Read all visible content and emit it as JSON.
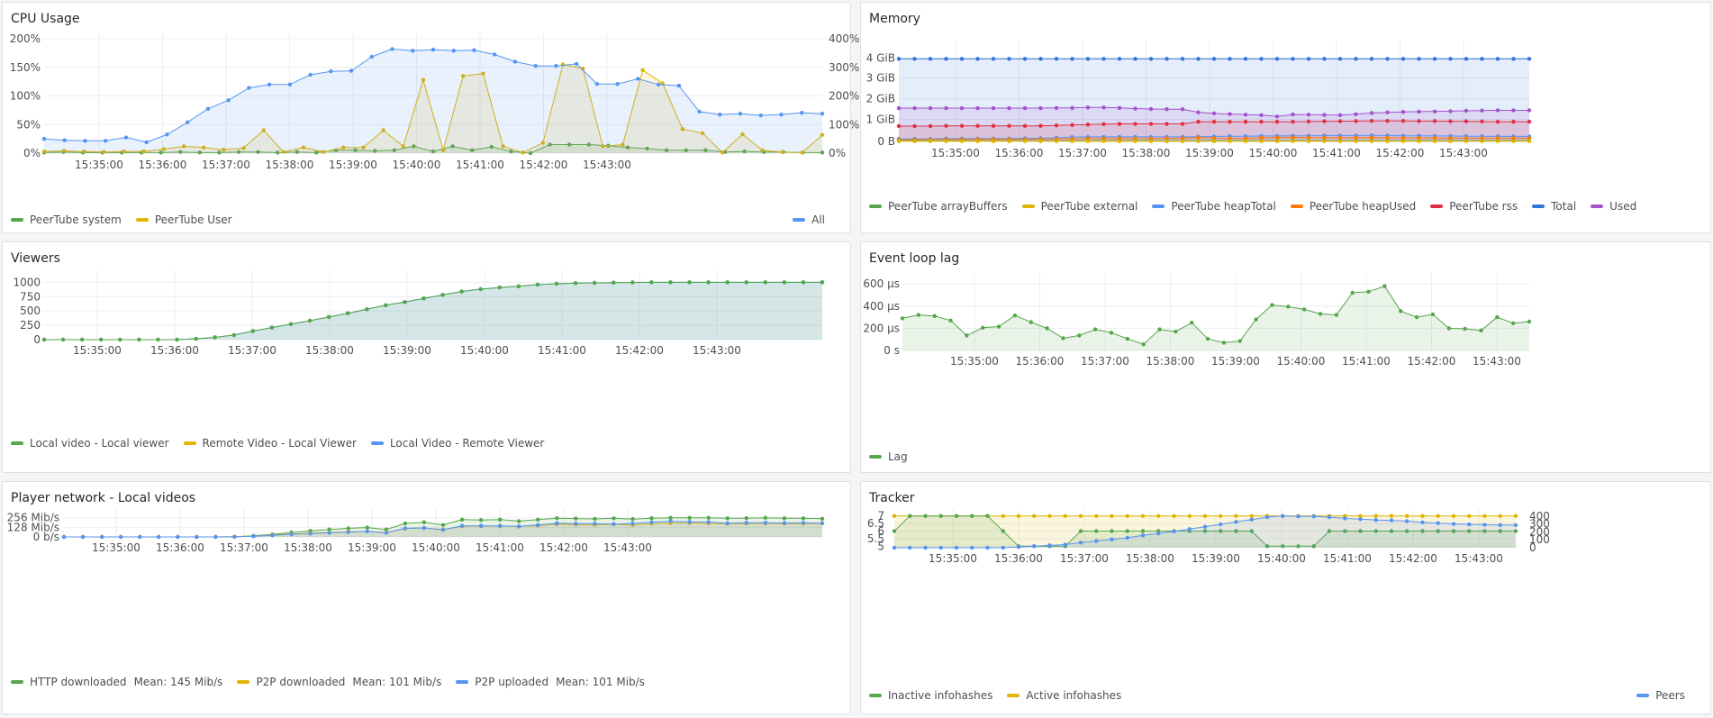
{
  "panels": {
    "cpu": {
      "title": "CPU Usage",
      "legend_left": [
        {
          "name": "PeerTube system",
          "color": "#56a64b"
        },
        {
          "name": "PeerTube User",
          "color": "#e0b400"
        }
      ],
      "legend_right": [
        {
          "name": "All",
          "color": "#5794f2"
        }
      ],
      "yticks_left": [
        "200%",
        "150%",
        "100%",
        "50%",
        "0%"
      ],
      "yticks_right": [
        "400%",
        "300%",
        "200%",
        "100%",
        "0%"
      ]
    },
    "memory": {
      "title": "Memory",
      "legend": [
        {
          "name": "PeerTube arrayBuffers",
          "color": "#56a64b"
        },
        {
          "name": "PeerTube external",
          "color": "#e0b400"
        },
        {
          "name": "PeerTube heapTotal",
          "color": "#5794f2"
        },
        {
          "name": "PeerTube heapUsed",
          "color": "#ff780a"
        },
        {
          "name": "PeerTube rss",
          "color": "#e02f44"
        },
        {
          "name": "Total",
          "color": "#3274d9"
        },
        {
          "name": "Used",
          "color": "#a352cc"
        }
      ],
      "yticks": [
        "4 GiB",
        "3 GiB",
        "2 GiB",
        "1 GiB",
        "0 B"
      ]
    },
    "viewers": {
      "title": "Viewers",
      "legend": [
        {
          "name": "Local video - Local viewer",
          "color": "#56a64b"
        },
        {
          "name": "Remote Video - Local Viewer",
          "color": "#e0b400"
        },
        {
          "name": "Local Video - Remote Viewer",
          "color": "#5794f2"
        }
      ],
      "yticks": [
        "1000",
        "750",
        "500",
        "250",
        "0"
      ]
    },
    "lag": {
      "title": "Event loop lag",
      "legend": [
        {
          "name": "Lag",
          "color": "#56a64b"
        }
      ],
      "yticks": [
        "600 µs",
        "400 µs",
        "200 µs",
        "0 s"
      ]
    },
    "network": {
      "title": "Player network - Local videos",
      "legend": [
        {
          "name": "HTTP downloaded",
          "mean": "Mean: 145 Mib/s",
          "color": "#56a64b"
        },
        {
          "name": "P2P downloaded",
          "mean": "Mean: 101 Mib/s",
          "color": "#e0b400"
        },
        {
          "name": "P2P uploaded",
          "mean": "Mean: 101 Mib/s",
          "color": "#5794f2"
        }
      ],
      "yticks": [
        "256 Mib/s",
        "128 Mib/s",
        "0 b/s"
      ]
    },
    "tracker": {
      "title": "Tracker",
      "legend_left": [
        {
          "name": "Inactive infohashes",
          "color": "#56a64b"
        },
        {
          "name": "Active infohashes",
          "color": "#e0b400"
        }
      ],
      "legend_right": [
        {
          "name": "Peers",
          "color": "#5794f2"
        }
      ],
      "yticks_left": [
        "7",
        "6.5",
        "6",
        "5.5",
        "5"
      ],
      "yticks_right": [
        "400",
        "300",
        "200",
        "100",
        "0"
      ]
    }
  },
  "time_ticks": [
    "15:35:00",
    "15:36:00",
    "15:37:00",
    "15:38:00",
    "15:39:00",
    "15:40:00",
    "15:41:00",
    "15:42:00",
    "15:43:00"
  ],
  "chart_data": [
    {
      "id": "cpu",
      "type": "area",
      "title": "CPU Usage",
      "ylim": [
        0,
        200
      ],
      "y2lim": [
        0,
        400
      ],
      "series": [
        {
          "name": "PeerTube system",
          "axis": "left",
          "values": [
            1,
            2,
            1,
            1,
            1,
            1,
            1,
            2,
            1,
            1,
            2,
            2,
            1,
            2,
            1,
            5,
            5,
            4,
            5,
            12,
            3,
            12,
            5,
            11,
            3,
            0,
            15,
            15,
            15,
            13,
            10,
            8,
            5,
            5,
            5,
            2,
            3,
            2,
            2,
            1,
            1
          ]
        },
        {
          "name": "PeerTube User",
          "axis": "left",
          "values": [
            3,
            4,
            3,
            2,
            3,
            3,
            7,
            12,
            10,
            6,
            9,
            40,
            2,
            10,
            2,
            10,
            10,
            40,
            12,
            128,
            5,
            135,
            139,
            12,
            1,
            18,
            155,
            148,
            12,
            15,
            145,
            122,
            42,
            35,
            1,
            33,
            5,
            2,
            1,
            32
          ]
        },
        {
          "name": "All",
          "axis": "right",
          "values": [
            50,
            45,
            43,
            43,
            55,
            38,
            65,
            108,
            155,
            185,
            228,
            240,
            240,
            274,
            286,
            288,
            337,
            364,
            358,
            362,
            358,
            360,
            345,
            320,
            305,
            305,
            312,
            242,
            242,
            260,
            240,
            236,
            145,
            135,
            138,
            132,
            135,
            141,
            138
          ]
        }
      ]
    },
    {
      "id": "memory",
      "type": "area",
      "title": "Memory",
      "ylim": [
        0,
        4.4
      ],
      "yunit": "GiB",
      "series": [
        {
          "name": "Total",
          "values": [
            3.77,
            3.77,
            3.77,
            3.77,
            3.77,
            3.77,
            3.77,
            3.77,
            3.77,
            3.77,
            3.77,
            3.77,
            3.77,
            3.77,
            3.77,
            3.77,
            3.77,
            3.77,
            3.77,
            3.77,
            3.77,
            3.77,
            3.77,
            3.77,
            3.77,
            3.77,
            3.77,
            3.77,
            3.77,
            3.77,
            3.77,
            3.77,
            3.77,
            3.77,
            3.77,
            3.77,
            3.77,
            3.77,
            3.77,
            3.77,
            3.77
          ]
        },
        {
          "name": "Used",
          "values": [
            1.52,
            1.52,
            1.52,
            1.52,
            1.52,
            1.52,
            1.52,
            1.52,
            1.52,
            1.52,
            1.53,
            1.53,
            1.55,
            1.55,
            1.53,
            1.5,
            1.48,
            1.47,
            1.47,
            1.33,
            1.28,
            1.25,
            1.22,
            1.2,
            1.14,
            1.23,
            1.22,
            1.21,
            1.2,
            1.24,
            1.3,
            1.33,
            1.35,
            1.36,
            1.37,
            1.38,
            1.4,
            1.41,
            1.42,
            1.42,
            1.42
          ]
        },
        {
          "name": "PeerTube rss",
          "values": [
            0.7,
            0.7,
            0.7,
            0.71,
            0.71,
            0.71,
            0.71,
            0.71,
            0.71,
            0.71,
            0.73,
            0.75,
            0.77,
            0.79,
            0.8,
            0.8,
            0.8,
            0.8,
            0.8,
            0.9,
            0.9,
            0.9,
            0.9,
            0.9,
            0.9,
            0.9,
            0.91,
            0.92,
            0.92,
            0.93,
            0.94,
            0.94,
            0.94,
            0.93,
            0.93,
            0.92,
            0.92,
            0.91,
            0.9,
            0.9,
            0.9
          ]
        },
        {
          "name": "PeerTube heapTotal",
          "values": [
            0.12,
            0.12,
            0.12,
            0.13,
            0.13,
            0.13,
            0.13,
            0.13,
            0.14,
            0.15,
            0.17,
            0.2,
            0.21,
            0.21,
            0.21,
            0.21,
            0.21,
            0.21,
            0.21,
            0.22,
            0.23,
            0.24,
            0.24,
            0.25,
            0.25,
            0.26,
            0.26,
            0.27,
            0.27,
            0.27,
            0.28,
            0.27,
            0.26,
            0.26,
            0.25,
            0.25,
            0.24,
            0.24,
            0.23,
            0.23,
            0.23
          ]
        },
        {
          "name": "PeerTube heapUsed",
          "values": [
            0.08,
            0.08,
            0.09,
            0.09,
            0.09,
            0.1,
            0.1,
            0.1,
            0.1,
            0.11,
            0.11,
            0.12,
            0.13,
            0.13,
            0.13,
            0.13,
            0.13,
            0.14,
            0.14,
            0.18,
            0.15,
            0.14,
            0.14,
            0.17,
            0.18,
            0.19,
            0.18,
            0.18,
            0.17,
            0.18,
            0.18,
            0.17,
            0.16,
            0.16,
            0.16,
            0.15,
            0.15,
            0.15,
            0.15,
            0.15,
            0.15
          ]
        },
        {
          "name": "PeerTube arrayBuffers",
          "values": [
            0.03,
            0.03,
            0.03,
            0.03,
            0.03,
            0.03,
            0.03,
            0.03,
            0.03,
            0.03,
            0.03,
            0.03,
            0.03,
            0.03,
            0.03,
            0.03,
            0.03,
            0.03,
            0.03,
            0.03,
            0.03,
            0.03,
            0.03,
            0.03,
            0.03,
            0.03,
            0.03,
            0.03,
            0.03,
            0.03,
            0.03,
            0.03,
            0.03,
            0.03,
            0.03,
            0.03,
            0.03,
            0.03,
            0.03,
            0.03,
            0.03
          ]
        },
        {
          "name": "PeerTube external",
          "values": [
            0.01,
            0.01,
            0.01,
            0.01,
            0.01,
            0.01,
            0.01,
            0.01,
            0.01,
            0.01,
            0.01,
            0.01,
            0.01,
            0.01,
            0.01,
            0.01,
            0.01,
            0.01,
            0.01,
            0.01,
            0.01,
            0.01,
            0.01,
            0.01,
            0.01,
            0.01,
            0.01,
            0.01,
            0.01,
            0.01,
            0.01,
            0.01,
            0.01,
            0.01,
            0.01,
            0.01,
            0.01,
            0.01,
            0.01,
            0.01,
            0.01
          ]
        }
      ]
    },
    {
      "id": "viewers",
      "type": "area",
      "title": "Viewers",
      "ylim": [
        0,
        1100
      ],
      "series": [
        {
          "name": "Local Video - Remote Viewer",
          "values": [
            0,
            0,
            0,
            0,
            0,
            0,
            0,
            0,
            15,
            40,
            80,
            150,
            210,
            270,
            330,
            395,
            460,
            530,
            600,
            655,
            720,
            780,
            840,
            880,
            910,
            930,
            960,
            975,
            985,
            990,
            995,
            998,
            1000,
            1000,
            1000,
            1000,
            1000,
            1000,
            1000,
            1000,
            1000,
            1000
          ]
        },
        {
          "name": "Local video - Local viewer",
          "values": [
            0,
            0,
            0,
            0,
            0,
            0,
            0,
            0,
            15,
            40,
            80,
            150,
            210,
            270,
            330,
            395,
            460,
            530,
            600,
            655,
            720,
            780,
            840,
            880,
            910,
            930,
            960,
            975,
            985,
            990,
            995,
            998,
            1000,
            1000,
            1000,
            1000,
            1000,
            1000,
            1000,
            1000,
            1000,
            1000
          ]
        }
      ]
    },
    {
      "id": "lag",
      "type": "area",
      "title": "Event loop lag",
      "ylim": [
        0,
        650
      ],
      "yunit": "µs",
      "series": [
        {
          "name": "Lag",
          "values": [
            290,
            320,
            310,
            270,
            135,
            205,
            215,
            315,
            255,
            200,
            110,
            135,
            190,
            160,
            105,
            55,
            190,
            170,
            250,
            105,
            70,
            85,
            280,
            410,
            395,
            370,
            330,
            320,
            520,
            530,
            580,
            355,
            300,
            325,
            200,
            195,
            180,
            300,
            245,
            260
          ]
        }
      ]
    },
    {
      "id": "network",
      "type": "area",
      "title": "Player network - Local videos",
      "ylim": [
        0,
        300
      ],
      "yunit": "Mib/s",
      "series": [
        {
          "name": "HTTP downloaded",
          "values": [
            0,
            0,
            0,
            0,
            0,
            0,
            0,
            0,
            0,
            3,
            15,
            35,
            60,
            80,
            100,
            115,
            125,
            100,
            180,
            195,
            160,
            230,
            225,
            230,
            210,
            230,
            250,
            245,
            240,
            248,
            238,
            250,
            255,
            255,
            255,
            248,
            250,
            255,
            248,
            248,
            242
          ]
        },
        {
          "name": "P2P downloaded",
          "values": [
            0,
            0,
            0,
            0,
            0,
            0,
            0,
            0,
            0,
            2,
            10,
            25,
            40,
            50,
            60,
            70,
            75,
            60,
            110,
            120,
            100,
            140,
            145,
            145,
            140,
            150,
            170,
            165,
            162,
            168,
            160,
            178,
            185,
            185,
            182,
            175,
            178,
            180,
            178,
            178,
            180
          ]
        },
        {
          "name": "P2P uploaded",
          "values": [
            0,
            0,
            0,
            0,
            0,
            0,
            0,
            0,
            0,
            2,
            8,
            20,
            35,
            45,
            55,
            65,
            75,
            55,
            115,
            120,
            95,
            148,
            148,
            148,
            140,
            158,
            182,
            178,
            178,
            172,
            180,
            195,
            210,
            200,
            198,
            182,
            188,
            190,
            185,
            188,
            183
          ]
        }
      ]
    },
    {
      "id": "tracker",
      "type": "area",
      "title": "Tracker",
      "ylim": [
        4.9,
        7.1
      ],
      "y2lim": [
        0,
        420
      ],
      "series": [
        {
          "name": "Active infohashes",
          "axis": "left",
          "values": [
            7,
            7,
            7,
            7,
            7,
            7,
            7,
            7,
            7,
            7,
            7,
            7,
            7,
            7,
            7,
            7,
            7,
            7,
            7,
            7,
            7,
            7,
            7,
            7,
            7,
            7,
            7,
            7,
            7,
            7,
            7,
            7,
            7,
            7,
            7,
            7,
            7,
            7,
            7,
            7,
            7
          ]
        },
        {
          "name": "Inactive infohashes",
          "axis": "left",
          "values": [
            6,
            7,
            7,
            7,
            7,
            7,
            7,
            6,
            5,
            5,
            5,
            5,
            6,
            6,
            6,
            6,
            6,
            6,
            6,
            6,
            6,
            6,
            6,
            6,
            5,
            5,
            5,
            5,
            6,
            6,
            6,
            6,
            6,
            6,
            6,
            6,
            6,
            6,
            6,
            6,
            6
          ]
        },
        {
          "name": "Peers",
          "axis": "right",
          "values": [
            0,
            0,
            0,
            0,
            0,
            0,
            0,
            0,
            10,
            20,
            30,
            40,
            65,
            85,
            105,
            125,
            155,
            180,
            205,
            235,
            265,
            295,
            325,
            355,
            385,
            400,
            395,
            395,
            385,
            370,
            360,
            350,
            345,
            335,
            320,
            310,
            300,
            295,
            290,
            285,
            285
          ]
        }
      ]
    }
  ]
}
